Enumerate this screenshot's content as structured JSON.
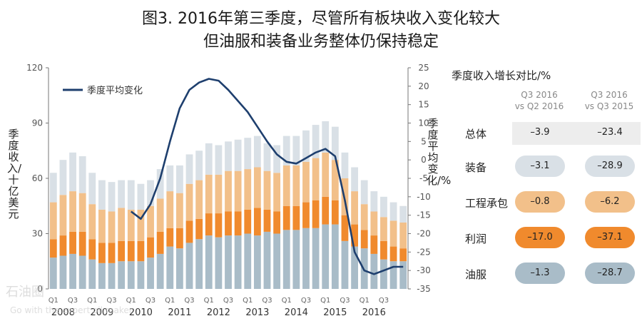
{
  "title_line1": "图3. 2016年第三季度，尽管所有板块收入变化较大",
  "title_line2": "但油服和装备业务整体仍保持稳定",
  "watermark": "石油圈",
  "watermark_sub": "Go with the expert oil maker",
  "colors": {
    "oilfield": "#a9bcc8",
    "profit": "#f08a2d",
    "construction": "#f2c08a",
    "equipment": "#d9e0e6",
    "line": "#1e3f6e"
  },
  "chart_data": {
    "type": "bar",
    "stacked": true,
    "ylabel_left": "季度收入/十亿美元",
    "ylabel_right": "季度平均变化/%",
    "ylim_left": [
      0,
      120
    ],
    "ylim_right": [
      -35,
      25
    ],
    "left_ticks": [
      "0",
      "30",
      "60",
      "90",
      "120"
    ],
    "right_ticks": [
      "25",
      "20",
      "15",
      "10",
      "5",
      "0",
      "-5",
      "-10",
      "-15",
      "-20",
      "-25",
      "-30",
      "-35"
    ],
    "legend_label": "季度平均变化",
    "legend_position": "top-left",
    "years": [
      "2008",
      "2009",
      "2010",
      "2011",
      "2012",
      "2013",
      "2014",
      "2015",
      "2016"
    ],
    "quarter_labels": [
      "Q1",
      "Q3"
    ],
    "series": [
      {
        "key": "oilfield",
        "values": [
          17,
          18,
          19,
          18,
          16,
          14,
          14,
          15,
          15,
          15,
          17,
          19,
          23,
          22,
          25,
          27,
          29,
          28,
          29,
          29,
          30,
          29,
          31,
          30,
          32,
          32,
          33,
          33,
          35,
          35,
          26,
          23,
          22,
          19,
          16,
          15,
          15
        ]
      },
      {
        "key": "profit",
        "values": [
          10,
          11,
          12,
          13,
          11,
          11,
          11,
          11,
          11,
          11,
          11,
          12,
          10,
          11,
          12,
          11,
          12,
          13,
          13,
          13,
          13,
          15,
          12,
          12,
          13,
          13,
          14,
          15,
          15,
          13,
          14,
          12,
          10,
          10,
          10,
          8,
          7
        ]
      },
      {
        "key": "construction",
        "values": [
          20,
          22,
          22,
          21,
          19,
          18,
          17,
          18,
          17,
          17,
          17,
          18,
          20,
          19,
          20,
          21,
          21,
          21,
          22,
          22,
          22,
          22,
          21,
          21,
          22,
          22,
          22,
          23,
          24,
          22,
          20,
          18,
          14,
          13,
          13,
          14,
          14
        ]
      },
      {
        "key": "equipment",
        "values": [
          16,
          19,
          21,
          20,
          17,
          16,
          16,
          15,
          16,
          14,
          14,
          16,
          14,
          15,
          16,
          16,
          17,
          16,
          16,
          17,
          17,
          17,
          15,
          15,
          16,
          16,
          17,
          18,
          17,
          18,
          14,
          13,
          13,
          11,
          11,
          10,
          9
        ]
      }
    ],
    "line_series": {
      "name": "季度平均变化",
      "x_index": [
        8,
        9,
        10,
        11,
        12,
        13,
        14,
        15,
        16,
        17,
        18,
        19,
        20,
        21,
        22,
        23,
        24,
        25,
        26,
        27,
        28,
        29,
        30,
        31,
        32,
        33,
        34,
        35,
        36
      ],
      "values": [
        -14,
        -16,
        -12,
        -5,
        5,
        14,
        19,
        21,
        22,
        21.5,
        19,
        16,
        13,
        9,
        5,
        1.5,
        -0.5,
        -1,
        0.5,
        2,
        3,
        1,
        -11,
        -25,
        -30,
        -31,
        -30,
        -29,
        -29
      ]
    }
  },
  "table": {
    "title": "季度收入增长对比/%",
    "col1_header_line1": "Q3 2016",
    "col1_header_line2": "vs Q2 2016",
    "col2_header_line1": "Q3 2016",
    "col2_header_line2": "vs Q3 2015",
    "rows": [
      {
        "label": "总体",
        "v1": "–3.9",
        "v2": "–23.4",
        "color": "#ededed",
        "style": "total"
      },
      {
        "label": "装备",
        "v1": "–3.1",
        "v2": "–28.9",
        "color": "#d9e0e6",
        "style": "pill"
      },
      {
        "label": "工程承包",
        "v1": "–0.8",
        "v2": "–6.2",
        "color": "#f2c08a",
        "style": "pill"
      },
      {
        "label": "利润",
        "v1": "–17.0",
        "v2": "–37.1",
        "color": "#f08a2d",
        "style": "pill"
      },
      {
        "label": "油服",
        "v1": "–1.3",
        "v2": "–28.7",
        "color": "#a9bcc8",
        "style": "pill"
      }
    ]
  }
}
